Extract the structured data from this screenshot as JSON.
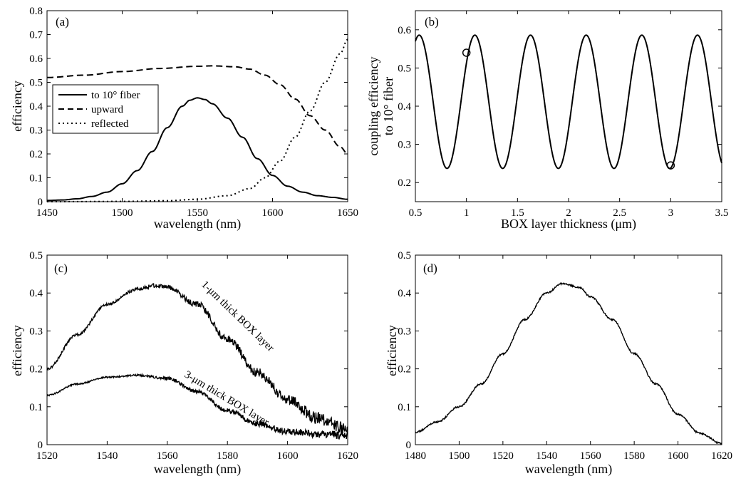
{
  "chart_data": [
    {
      "panel_label": "(a)",
      "type": "line",
      "xlabel": "wavelength (nm)",
      "ylabel": "efficiency",
      "xlim": [
        1450,
        1650
      ],
      "ylim": [
        0,
        0.8
      ],
      "xticks": [
        "1450",
        "1500",
        "1550",
        "1600",
        "1650"
      ],
      "yticks": [
        "0",
        "0.1",
        "0.2",
        "0.3",
        "0.4",
        "0.5",
        "0.6",
        "0.7",
        "0.8"
      ],
      "legend_position": "middle-left",
      "series": [
        {
          "name": "to 10° fiber",
          "style": "solid",
          "x": [
            1450,
            1460,
            1470,
            1480,
            1490,
            1500,
            1510,
            1520,
            1530,
            1540,
            1545,
            1550,
            1555,
            1560,
            1570,
            1580,
            1590,
            1600,
            1610,
            1620,
            1630,
            1640,
            1650
          ],
          "y": [
            0.005,
            0.007,
            0.012,
            0.022,
            0.04,
            0.075,
            0.13,
            0.21,
            0.31,
            0.4,
            0.425,
            0.435,
            0.428,
            0.41,
            0.35,
            0.27,
            0.18,
            0.11,
            0.065,
            0.04,
            0.025,
            0.018,
            0.01
          ]
        },
        {
          "name": "upward",
          "style": "dashed",
          "x": [
            1450,
            1475,
            1500,
            1525,
            1550,
            1560,
            1575,
            1585,
            1595,
            1605,
            1615,
            1625,
            1635,
            1645,
            1650
          ],
          "y": [
            0.52,
            0.53,
            0.545,
            0.558,
            0.567,
            0.569,
            0.565,
            0.555,
            0.53,
            0.49,
            0.43,
            0.36,
            0.3,
            0.23,
            0.2
          ]
        },
        {
          "name": "reflected",
          "style": "dotted",
          "x": [
            1450,
            1500,
            1530,
            1550,
            1570,
            1585,
            1595,
            1605,
            1615,
            1625,
            1635,
            1645,
            1650
          ],
          "y": [
            0.0,
            0.001,
            0.004,
            0.01,
            0.025,
            0.055,
            0.1,
            0.17,
            0.27,
            0.38,
            0.5,
            0.62,
            0.68
          ]
        }
      ]
    },
    {
      "panel_label": "(b)",
      "type": "line",
      "xlabel": "BOX layer thickness (μm)",
      "ylabel_line1": "coupling efficiency",
      "ylabel_line2": "to 10° fiber",
      "xlim": [
        0.5,
        3.5
      ],
      "ylim": [
        0.15,
        0.65
      ],
      "xticks": [
        "0.5",
        "1",
        "1.5",
        "2",
        "2.5",
        "3",
        "3.5"
      ],
      "yticks": [
        "0.2",
        "0.3",
        "0.4",
        "0.5",
        "0.6"
      ],
      "oscillation": {
        "period": 0.545,
        "first_min": 0.81,
        "min": 0.237,
        "max": 0.586
      },
      "markers": [
        {
          "x": 1.0,
          "y": 0.54
        },
        {
          "x": 3.0,
          "y": 0.245
        }
      ]
    },
    {
      "panel_label": "(c)",
      "type": "line",
      "xlabel": "wavelength (nm)",
      "ylabel": "efficiency",
      "xlim": [
        1520,
        1620
      ],
      "ylim": [
        0,
        0.5
      ],
      "xticks": [
        "1520",
        "1540",
        "1560",
        "1580",
        "1600",
        "1620"
      ],
      "yticks": [
        "0",
        "0.1",
        "0.2",
        "0.3",
        "0.4",
        "0.5"
      ],
      "series": [
        {
          "label": "1-μm thick BOX layer",
          "x": [
            1520,
            1530,
            1540,
            1550,
            1556,
            1560,
            1570,
            1580,
            1590,
            1600,
            1610,
            1620
          ],
          "y": [
            0.2,
            0.29,
            0.37,
            0.41,
            0.42,
            0.415,
            0.37,
            0.28,
            0.19,
            0.12,
            0.07,
            0.04
          ]
        },
        {
          "label": "3-μm thick BOX layer",
          "x": [
            1520,
            1530,
            1540,
            1550,
            1560,
            1570,
            1580,
            1590,
            1600,
            1610,
            1620
          ],
          "y": [
            0.13,
            0.16,
            0.178,
            0.183,
            0.175,
            0.14,
            0.09,
            0.055,
            0.035,
            0.028,
            0.025
          ]
        }
      ]
    },
    {
      "panel_label": "(d)",
      "type": "line",
      "xlabel": "wavelength (nm)",
      "ylabel": "efficiency",
      "xlim": [
        1480,
        1620
      ],
      "ylim": [
        0,
        0.5
      ],
      "xticks": [
        "1480",
        "1500",
        "1520",
        "1540",
        "1560",
        "1580",
        "1600",
        "1620"
      ],
      "yticks": [
        "0",
        "0.1",
        "0.2",
        "0.3",
        "0.4",
        "0.5"
      ],
      "series": [
        {
          "x": [
            1480,
            1490,
            1500,
            1510,
            1520,
            1530,
            1540,
            1547,
            1555,
            1560,
            1570,
            1580,
            1590,
            1600,
            1610,
            1620
          ],
          "y": [
            0.033,
            0.06,
            0.1,
            0.16,
            0.24,
            0.33,
            0.4,
            0.425,
            0.415,
            0.39,
            0.33,
            0.24,
            0.16,
            0.08,
            0.03,
            0.003
          ]
        }
      ]
    }
  ]
}
